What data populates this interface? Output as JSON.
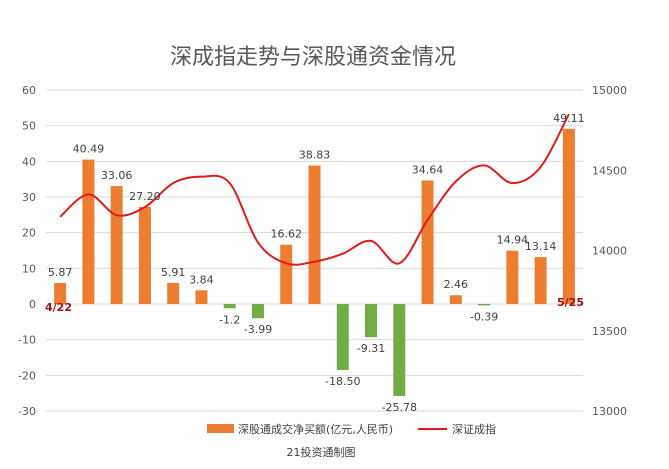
{
  "chart_data": {
    "type": "bar",
    "title": "深成指走势与深股通资金情况",
    "source": "21投资通制图",
    "start_label": "4/22",
    "end_label": "5/25",
    "left_axis": {
      "min": -30,
      "max": 60,
      "step": 10,
      "ticks": [
        "60",
        "50",
        "40",
        "30",
        "20",
        "10",
        "0",
        "-10",
        "-20",
        "-30"
      ]
    },
    "right_axis": {
      "min": 13000,
      "max": 15000,
      "step": 500,
      "ticks": [
        "15000",
        "14500",
        "14000",
        "13500",
        "13000"
      ]
    },
    "grid": true,
    "legend_position": "bottom",
    "colors": {
      "positive_bar": "#ed7d31",
      "negative_bar": "#70ad47",
      "line": "#e31a1c",
      "grid": "#d9d9d9"
    },
    "series": [
      {
        "name": "深股通成交净买额(亿元,人民币)",
        "kind": "bar",
        "axis": "left",
        "values": [
          5.87,
          40.49,
          33.06,
          27.2,
          5.91,
          3.84,
          -1.2,
          -3.99,
          16.62,
          38.83,
          -18.5,
          -9.31,
          -25.78,
          34.64,
          2.46,
          -0.39,
          14.94,
          13.14,
          49.11
        ],
        "labels": [
          "5.87",
          "40.49",
          "33.06",
          "27.20",
          "5.91",
          "3.84",
          "-1.2",
          "-3.99",
          "16.62",
          "38.83",
          "-18.50",
          "-9.31",
          "-25.78",
          "34.64",
          "2.46",
          "-0.39",
          "14.94",
          "13.14",
          "49.11"
        ]
      },
      {
        "name": "深证成指",
        "kind": "line",
        "axis": "right",
        "values": [
          14210,
          14350,
          14220,
          14270,
          14420,
          14460,
          14420,
          14050,
          13920,
          13930,
          13980,
          14060,
          13920,
          14190,
          14430,
          14530,
          14420,
          14520,
          14850
        ]
      }
    ]
  }
}
